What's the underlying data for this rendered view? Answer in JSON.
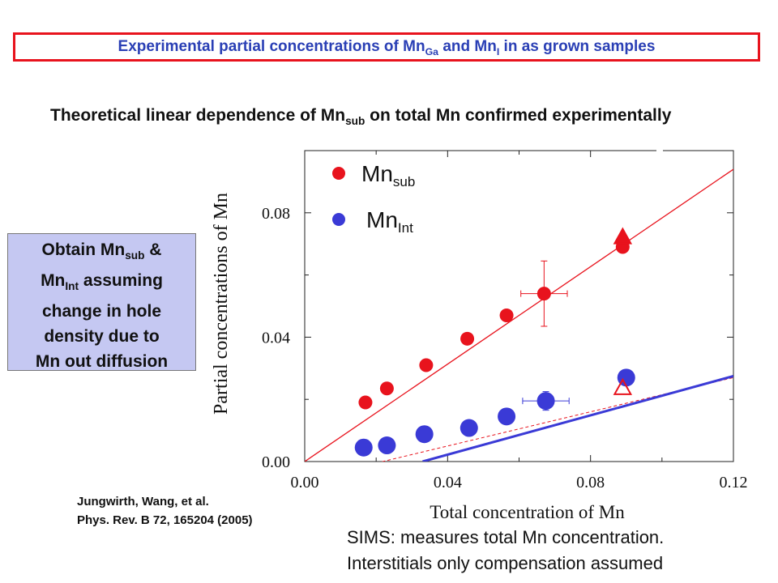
{
  "header": {
    "title_pre": "Experimental partial concentrations of Mn",
    "title_sub1": "Ga",
    "title_mid": " and Mn",
    "title_sub2": "I",
    "title_post": " in as grown samples"
  },
  "subtitle": {
    "pre": "Theoretical linear dependence of Mn",
    "sub": "sub",
    "post": " on total Mn confirmed experimentally"
  },
  "note": {
    "l1": "Obtain Mn",
    "l1sub": "sub",
    "l1post": " &",
    "l2": "Mn",
    "l2sub": "Int",
    "l2post": " assuming",
    "l3": "change in hole",
    "l4": "density due to",
    "l5": "Mn out diffusion"
  },
  "reference": {
    "line1": "Jungwirth, Wang, et al.",
    "line2": "Phys. Rev. B 72, 165204 (2005)"
  },
  "sims": {
    "line1": "SIMS: measures total Mn concentration.",
    "line2": "Interstitials only compensation assumed"
  },
  "colors": {
    "red": "#e8131d",
    "blue": "#3a3ad6",
    "title_blue": "#2a3fb5",
    "note_bg": "#c5c8f2"
  },
  "chart_data": {
    "type": "scatter",
    "xlabel": "Total concentration of Mn",
    "ylabel": "Partial concentrations of Mn",
    "xlim": [
      0,
      0.12
    ],
    "ylim": [
      0,
      0.1
    ],
    "x_ticks": [
      "0.00",
      "0.04",
      "0.08",
      "0.12"
    ],
    "y_ticks": [
      "0.00",
      "0.04",
      "0.08"
    ],
    "legend": [
      {
        "name": "Mn",
        "sub": "sub",
        "color": "#e8131d"
      },
      {
        "name": "Mn",
        "sub": "Int",
        "color": "#3a3ad6"
      }
    ],
    "series": [
      {
        "key": "sub",
        "color": "#e8131d",
        "points": [
          {
            "x": 0.017,
            "y": 0.019
          },
          {
            "x": 0.023,
            "y": 0.0235
          },
          {
            "x": 0.034,
            "y": 0.031
          },
          {
            "x": 0.0455,
            "y": 0.0395
          },
          {
            "x": 0.0565,
            "y": 0.047
          },
          {
            "x": 0.067,
            "y": 0.054,
            "xerr": 0.0065,
            "yerr": 0.0105
          },
          {
            "x": 0.089,
            "y": 0.069
          }
        ]
      },
      {
        "key": "int",
        "color": "#3a3ad6",
        "points": [
          {
            "x": 0.0165,
            "y": 0.0045
          },
          {
            "x": 0.023,
            "y": 0.0052
          },
          {
            "x": 0.0335,
            "y": 0.0088
          },
          {
            "x": 0.046,
            "y": 0.0108
          },
          {
            "x": 0.0565,
            "y": 0.0145
          },
          {
            "x": 0.0675,
            "y": 0.0195,
            "xerr": 0.0065,
            "yerr": 0.003
          },
          {
            "x": 0.09,
            "y": 0.027
          }
        ]
      }
    ],
    "triangles": [
      {
        "x": 0.089,
        "y": 0.0725,
        "filled": true,
        "color": "#e8131d"
      },
      {
        "x": 0.089,
        "y": 0.024,
        "filled": false,
        "color": "#e8131d"
      }
    ],
    "lines": [
      {
        "color": "#e8131d",
        "from": [
          0.0,
          0.0
        ],
        "to": [
          0.12,
          0.094
        ],
        "width": 1.3
      },
      {
        "color": "#e8131d",
        "from": [
          0.0,
          -0.006
        ],
        "to": [
          0.12,
          0.027
        ],
        "width": 1.0,
        "dash": "4,3"
      },
      {
        "color": "#3a3ad6",
        "from": [
          0.033,
          0.0
        ],
        "to": [
          0.12,
          0.0275
        ],
        "width": 3
      }
    ]
  }
}
